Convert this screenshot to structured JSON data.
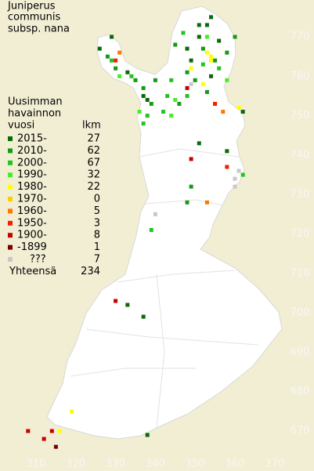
{
  "map": {
    "title": [
      "Juniperus",
      "communis",
      "subsp. nana"
    ],
    "legend_title": [
      "Uusimman",
      "havainnon",
      "vuosi"
    ],
    "count_header": "lkm",
    "legend": [
      {
        "label": "2015-",
        "count": 27,
        "color": "#0a6a0a"
      },
      {
        "label": "2010-",
        "count": 62,
        "color": "#169a16"
      },
      {
        "label": "2000-",
        "count": 67,
        "color": "#22c322"
      },
      {
        "label": "1990-",
        "count": 32,
        "color": "#44ee22"
      },
      {
        "label": "1980-",
        "count": 22,
        "color": "#ffff00"
      },
      {
        "label": "1970-",
        "count": 0,
        "color": "#ffcc00"
      },
      {
        "label": "1960-",
        "count": 5,
        "color": "#ff7700"
      },
      {
        "label": "1950-",
        "count": 3,
        "color": "#ee2200"
      },
      {
        "label": "1900-",
        "count": 8,
        "color": "#c40000"
      },
      {
        "label": "-1899",
        "count": 1,
        "color": "#7a0000"
      },
      {
        "label": "???",
        "count": 7,
        "color": "#c8c8c8"
      }
    ],
    "total": {
      "label": "Yhteensä",
      "count": 234
    },
    "xlim": [
      301,
      379
    ],
    "ylim": [
      659,
      779
    ],
    "xticks": [
      310,
      320,
      330,
      340,
      350,
      360,
      370
    ],
    "yticks": [
      670,
      680,
      690,
      700,
      710,
      720,
      730,
      740,
      750,
      760,
      770
    ],
    "observations": [
      {
        "x": 326,
        "y": 767,
        "class": 0
      },
      {
        "x": 329,
        "y": 770,
        "class": 0
      },
      {
        "x": 333,
        "y": 761,
        "class": 0
      },
      {
        "x": 337,
        "y": 755,
        "class": 0
      },
      {
        "x": 338,
        "y": 754,
        "class": 0
      },
      {
        "x": 351,
        "y": 773,
        "class": 0
      },
      {
        "x": 353,
        "y": 773,
        "class": 0
      },
      {
        "x": 354,
        "y": 775,
        "class": 0
      },
      {
        "x": 356,
        "y": 769,
        "class": 0
      },
      {
        "x": 351,
        "y": 770,
        "class": 0
      },
      {
        "x": 349,
        "y": 764,
        "class": 0
      },
      {
        "x": 351,
        "y": 743,
        "class": 0
      },
      {
        "x": 358,
        "y": 741,
        "class": 0
      },
      {
        "x": 333,
        "y": 702,
        "class": 0
      },
      {
        "x": 338,
        "y": 669,
        "class": 0
      },
      {
        "x": 362,
        "y": 751,
        "class": 0
      },
      {
        "x": 337,
        "y": 699,
        "class": 0
      },
      {
        "x": 348,
        "y": 767,
        "class": 0
      },
      {
        "x": 354,
        "y": 760,
        "class": 0
      },
      {
        "x": 328,
        "y": 765,
        "class": 1
      },
      {
        "x": 330,
        "y": 762,
        "class": 1
      },
      {
        "x": 335,
        "y": 759,
        "class": 1
      },
      {
        "x": 345,
        "y": 768,
        "class": 1
      },
      {
        "x": 348,
        "y": 761,
        "class": 1
      },
      {
        "x": 352,
        "y": 767,
        "class": 1
      },
      {
        "x": 355,
        "y": 764,
        "class": 1
      },
      {
        "x": 358,
        "y": 766,
        "class": 1
      },
      {
        "x": 346,
        "y": 753,
        "class": 1
      },
      {
        "x": 339,
        "y": 753,
        "class": 1
      },
      {
        "x": 337,
        "y": 757,
        "class": 1
      },
      {
        "x": 349,
        "y": 732,
        "class": 1
      },
      {
        "x": 348,
        "y": 728,
        "class": 1
      },
      {
        "x": 340,
        "y": 759,
        "class": 1
      },
      {
        "x": 350,
        "y": 759,
        "class": 1
      },
      {
        "x": 353,
        "y": 756,
        "class": 1
      },
      {
        "x": 360,
        "y": 770,
        "class": 1
      },
      {
        "x": 329,
        "y": 764,
        "class": 2
      },
      {
        "x": 334,
        "y": 760,
        "class": 2
      },
      {
        "x": 343,
        "y": 755,
        "class": 2
      },
      {
        "x": 344,
        "y": 759,
        "class": 2
      },
      {
        "x": 347,
        "y": 771,
        "class": 2
      },
      {
        "x": 352,
        "y": 763,
        "class": 2
      },
      {
        "x": 356,
        "y": 762,
        "class": 2
      },
      {
        "x": 338,
        "y": 750,
        "class": 2
      },
      {
        "x": 337,
        "y": 748,
        "class": 2
      },
      {
        "x": 342,
        "y": 751,
        "class": 2
      },
      {
        "x": 355,
        "y": 753,
        "class": 2
      },
      {
        "x": 362,
        "y": 735,
        "class": 2
      },
      {
        "x": 339,
        "y": 721,
        "class": 2
      },
      {
        "x": 348,
        "y": 755,
        "class": 2
      },
      {
        "x": 331,
        "y": 760,
        "class": 3
      },
      {
        "x": 336,
        "y": 751,
        "class": 3
      },
      {
        "x": 345,
        "y": 754,
        "class": 3
      },
      {
        "x": 344,
        "y": 750,
        "class": 3
      },
      {
        "x": 353,
        "y": 770,
        "class": 3
      },
      {
        "x": 358,
        "y": 759,
        "class": 3
      },
      {
        "x": 353,
        "y": 766,
        "class": 4
      },
      {
        "x": 354,
        "y": 764,
        "class": 4
      },
      {
        "x": 349,
        "y": 762,
        "class": 4
      },
      {
        "x": 352,
        "y": 758,
        "class": 4
      },
      {
        "x": 361,
        "y": 752,
        "class": 4
      },
      {
        "x": 319,
        "y": 675,
        "class": 4
      },
      {
        "x": 316,
        "y": 670,
        "class": 4
      },
      {
        "x": 354,
        "y": 765,
        "class": 4
      },
      {
        "x": 331,
        "y": 766,
        "class": 6
      },
      {
        "x": 357,
        "y": 751,
        "class": 6
      },
      {
        "x": 353,
        "y": 728,
        "class": 6
      },
      {
        "x": 330,
        "y": 764,
        "class": 7
      },
      {
        "x": 355,
        "y": 753,
        "class": 7
      },
      {
        "x": 358,
        "y": 737,
        "class": 7
      },
      {
        "x": 348,
        "y": 757,
        "class": 8
      },
      {
        "x": 349,
        "y": 739,
        "class": 8
      },
      {
        "x": 308,
        "y": 670,
        "class": 8
      },
      {
        "x": 312,
        "y": 668,
        "class": 8
      },
      {
        "x": 330,
        "y": 703,
        "class": 8
      },
      {
        "x": 314,
        "y": 670,
        "class": 8
      },
      {
        "x": 315,
        "y": 666,
        "class": 9
      },
      {
        "x": 349,
        "y": 758,
        "class": 10
      },
      {
        "x": 360,
        "y": 732,
        "class": 10
      },
      {
        "x": 360,
        "y": 734,
        "class": 10
      },
      {
        "x": 340,
        "y": 725,
        "class": 10
      },
      {
        "x": 361,
        "y": 736,
        "class": 10
      }
    ]
  }
}
